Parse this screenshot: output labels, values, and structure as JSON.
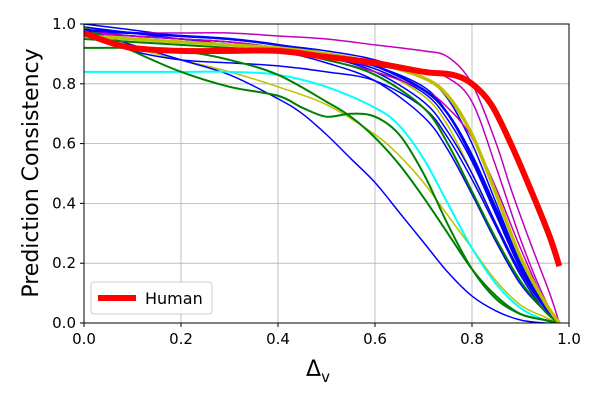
{
  "chart_data": {
    "type": "line",
    "title": "",
    "xlabel": "Δ",
    "xlabel_sub": "v",
    "ylabel": "Prediction Consistency",
    "xlim": [
      0,
      1
    ],
    "ylim": [
      0,
      1
    ],
    "xticks": [
      0,
      0.2,
      0.4,
      0.6,
      0.8,
      1.0
    ],
    "xtick_labels": [
      "0.0",
      "0.2",
      "0.4",
      "0.6",
      "0.8",
      "1.0"
    ],
    "yticks": [
      0,
      0.2,
      0.4,
      0.6,
      0.8,
      1.0
    ],
    "ytick_labels": [
      "0.0",
      "0.2",
      "0.4",
      "0.6",
      "0.8",
      "1.0"
    ],
    "grid": true,
    "legend": {
      "position": "lower-left",
      "entries": [
        {
          "label": "Human",
          "color": "#ff0000"
        }
      ]
    },
    "series": [
      {
        "name": "Human",
        "color": "#ff0000",
        "width": 6,
        "legend": true,
        "x": [
          0,
          0.05,
          0.1,
          0.2,
          0.3,
          0.4,
          0.5,
          0.6,
          0.7,
          0.76,
          0.8,
          0.84,
          0.88,
          0.92,
          0.96,
          0.98
        ],
        "y": [
          0.97,
          0.94,
          0.92,
          0.91,
          0.91,
          0.91,
          0.89,
          0.87,
          0.84,
          0.83,
          0.8,
          0.73,
          0.6,
          0.45,
          0.29,
          0.19
        ]
      },
      {
        "name": "model-olive-thick",
        "color": "#bfbf00",
        "width": 3.5,
        "x": [
          0,
          0.1,
          0.2,
          0.3,
          0.4,
          0.5,
          0.6,
          0.7,
          0.75,
          0.8,
          0.85,
          0.9,
          0.95,
          0.98
        ],
        "y": [
          0.96,
          0.95,
          0.94,
          0.93,
          0.92,
          0.9,
          0.87,
          0.82,
          0.76,
          0.63,
          0.43,
          0.22,
          0.07,
          0.0
        ]
      },
      {
        "name": "model-cyan",
        "color": "#00ffff",
        "width": 2,
        "x": [
          0,
          0.1,
          0.2,
          0.3,
          0.4,
          0.5,
          0.6,
          0.65,
          0.7,
          0.75,
          0.8,
          0.85,
          0.9,
          0.95,
          0.98
        ],
        "y": [
          0.84,
          0.84,
          0.84,
          0.84,
          0.83,
          0.79,
          0.72,
          0.66,
          0.55,
          0.4,
          0.25,
          0.13,
          0.05,
          0.01,
          0.0
        ]
      },
      {
        "name": "model-green-1",
        "color": "#008000",
        "width": 2,
        "x": [
          0,
          0.1,
          0.2,
          0.3,
          0.4,
          0.5,
          0.55,
          0.6,
          0.65,
          0.7,
          0.75,
          0.8,
          0.85,
          0.9,
          0.95,
          0.98
        ],
        "y": [
          0.92,
          0.92,
          0.91,
          0.88,
          0.83,
          0.74,
          0.69,
          0.62,
          0.53,
          0.42,
          0.3,
          0.18,
          0.09,
          0.03,
          0.01,
          0.0
        ]
      },
      {
        "name": "model-green-2",
        "color": "#008000",
        "width": 2,
        "x": [
          0,
          0.1,
          0.2,
          0.3,
          0.4,
          0.45,
          0.5,
          0.55,
          0.6,
          0.65,
          0.7,
          0.75,
          0.8,
          0.85,
          0.9,
          0.95,
          0.98
        ],
        "y": [
          0.99,
          0.91,
          0.84,
          0.79,
          0.76,
          0.72,
          0.69,
          0.7,
          0.69,
          0.63,
          0.5,
          0.33,
          0.18,
          0.08,
          0.03,
          0.01,
          0.0
        ]
      },
      {
        "name": "model-green-3",
        "color": "#008000",
        "width": 2,
        "x": [
          0,
          0.1,
          0.2,
          0.3,
          0.4,
          0.5,
          0.6,
          0.7,
          0.75,
          0.8,
          0.85,
          0.9,
          0.95,
          0.98
        ],
        "y": [
          0.95,
          0.94,
          0.93,
          0.92,
          0.91,
          0.88,
          0.83,
          0.72,
          0.6,
          0.44,
          0.28,
          0.14,
          0.04,
          0.0
        ]
      },
      {
        "name": "model-olive-1",
        "color": "#bfbf00",
        "width": 1.5,
        "x": [
          0,
          0.1,
          0.2,
          0.3,
          0.4,
          0.5,
          0.6,
          0.65,
          0.7,
          0.75,
          0.8,
          0.85,
          0.9,
          0.95,
          0.98
        ],
        "y": [
          0.97,
          0.92,
          0.88,
          0.84,
          0.79,
          0.73,
          0.63,
          0.56,
          0.47,
          0.36,
          0.25,
          0.14,
          0.06,
          0.02,
          0.0
        ]
      },
      {
        "name": "model-olive-2",
        "color": "#bfbf00",
        "width": 1.5,
        "x": [
          0,
          0.1,
          0.2,
          0.3,
          0.4,
          0.5,
          0.6,
          0.7,
          0.75,
          0.8,
          0.85,
          0.9,
          0.95,
          0.98
        ],
        "y": [
          0.96,
          0.96,
          0.95,
          0.94,
          0.92,
          0.89,
          0.85,
          0.76,
          0.66,
          0.5,
          0.32,
          0.16,
          0.05,
          0.0
        ]
      },
      {
        "name": "model-blue-1",
        "color": "#0000ff",
        "width": 1.5,
        "x": [
          0,
          0.1,
          0.2,
          0.3,
          0.4,
          0.45,
          0.5,
          0.55,
          0.6,
          0.65,
          0.7,
          0.75,
          0.8,
          0.85,
          0.9,
          0.95,
          0.98
        ],
        "y": [
          0.98,
          0.93,
          0.88,
          0.83,
          0.75,
          0.7,
          0.63,
          0.55,
          0.47,
          0.37,
          0.27,
          0.17,
          0.09,
          0.04,
          0.01,
          0.0,
          0.0
        ]
      },
      {
        "name": "model-blue-2",
        "color": "#0000ff",
        "width": 1.5,
        "x": [
          0,
          0.1,
          0.2,
          0.3,
          0.4,
          0.5,
          0.6,
          0.7,
          0.75,
          0.8,
          0.85,
          0.9,
          0.95,
          0.98
        ],
        "y": [
          0.97,
          0.91,
          0.88,
          0.87,
          0.86,
          0.84,
          0.81,
          0.72,
          0.62,
          0.48,
          0.32,
          0.16,
          0.04,
          0.0
        ]
      },
      {
        "name": "model-blue-3",
        "color": "#0000ff",
        "width": 1.5,
        "x": [
          0,
          0.1,
          0.2,
          0.3,
          0.4,
          0.5,
          0.6,
          0.7,
          0.75,
          0.8,
          0.85,
          0.9,
          0.95,
          0.98
        ],
        "y": [
          1.0,
          0.98,
          0.96,
          0.95,
          0.93,
          0.9,
          0.86,
          0.79,
          0.7,
          0.55,
          0.37,
          0.19,
          0.05,
          0.0
        ]
      },
      {
        "name": "model-blue-4",
        "color": "#0000ff",
        "width": 1.5,
        "x": [
          0,
          0.1,
          0.2,
          0.3,
          0.4,
          0.5,
          0.6,
          0.7,
          0.75,
          0.8,
          0.85,
          0.9,
          0.95,
          0.98
        ],
        "y": [
          0.99,
          0.97,
          0.95,
          0.94,
          0.92,
          0.89,
          0.84,
          0.74,
          0.64,
          0.5,
          0.33,
          0.17,
          0.05,
          0.0
        ]
      },
      {
        "name": "model-blue-5",
        "color": "#0000ff",
        "width": 1.5,
        "x": [
          0,
          0.1,
          0.2,
          0.3,
          0.4,
          0.5,
          0.6,
          0.7,
          0.75,
          0.8,
          0.85,
          0.9,
          0.95,
          0.98
        ],
        "y": [
          0.98,
          0.96,
          0.95,
          0.93,
          0.91,
          0.87,
          0.81,
          0.69,
          0.58,
          0.43,
          0.27,
          0.13,
          0.04,
          0.0
        ]
      },
      {
        "name": "model-blue-6",
        "color": "#0000ff",
        "width": 1.5,
        "x": [
          0,
          0.1,
          0.2,
          0.3,
          0.4,
          0.5,
          0.6,
          0.7,
          0.75,
          0.8,
          0.85,
          0.9,
          0.95,
          0.98
        ],
        "y": [
          0.97,
          0.96,
          0.95,
          0.94,
          0.92,
          0.89,
          0.85,
          0.77,
          0.68,
          0.54,
          0.36,
          0.18,
          0.05,
          0.0
        ]
      },
      {
        "name": "model-blue-7",
        "color": "#0000ff",
        "width": 1.5,
        "x": [
          0,
          0.1,
          0.2,
          0.3,
          0.4,
          0.5,
          0.6,
          0.7,
          0.75,
          0.8,
          0.85,
          0.9,
          0.95,
          0.98
        ],
        "y": [
          0.99,
          0.97,
          0.96,
          0.95,
          0.93,
          0.91,
          0.88,
          0.82,
          0.75,
          0.6,
          0.4,
          0.2,
          0.06,
          0.0
        ]
      },
      {
        "name": "model-blue-thick",
        "color": "#0000ff",
        "width": 2.5,
        "x": [
          0,
          0.1,
          0.2,
          0.3,
          0.4,
          0.5,
          0.6,
          0.7,
          0.75,
          0.8,
          0.85,
          0.9,
          0.95,
          0.98
        ],
        "y": [
          0.98,
          0.97,
          0.96,
          0.95,
          0.93,
          0.9,
          0.86,
          0.78,
          0.7,
          0.56,
          0.38,
          0.2,
          0.06,
          0.0
        ]
      },
      {
        "name": "model-magenta-1",
        "color": "#bf00bf",
        "width": 1.5,
        "x": [
          0,
          0.1,
          0.2,
          0.3,
          0.4,
          0.5,
          0.6,
          0.7,
          0.75,
          0.8,
          0.85,
          0.88,
          0.92,
          0.96,
          0.98
        ],
        "y": [
          0.97,
          0.97,
          0.97,
          0.97,
          0.96,
          0.95,
          0.93,
          0.91,
          0.89,
          0.8,
          0.6,
          0.45,
          0.27,
          0.1,
          0.0
        ]
      },
      {
        "name": "model-magenta-2",
        "color": "#bf00bf",
        "width": 1.5,
        "x": [
          0,
          0.1,
          0.2,
          0.3,
          0.4,
          0.5,
          0.6,
          0.7,
          0.75,
          0.8,
          0.85,
          0.9,
          0.95,
          0.98
        ],
        "y": [
          0.98,
          0.97,
          0.96,
          0.95,
          0.93,
          0.89,
          0.86,
          0.84,
          0.82,
          0.74,
          0.52,
          0.28,
          0.08,
          0.0
        ]
      },
      {
        "name": "model-magenta-3",
        "color": "#bf00bf",
        "width": 1.5,
        "x": [
          0,
          0.1,
          0.2,
          0.3,
          0.4,
          0.5,
          0.6,
          0.7,
          0.75,
          0.8,
          0.85,
          0.9,
          0.95,
          0.98
        ],
        "y": [
          0.97,
          0.96,
          0.95,
          0.94,
          0.92,
          0.88,
          0.84,
          0.78,
          0.72,
          0.62,
          0.45,
          0.25,
          0.07,
          0.0
        ]
      }
    ]
  }
}
